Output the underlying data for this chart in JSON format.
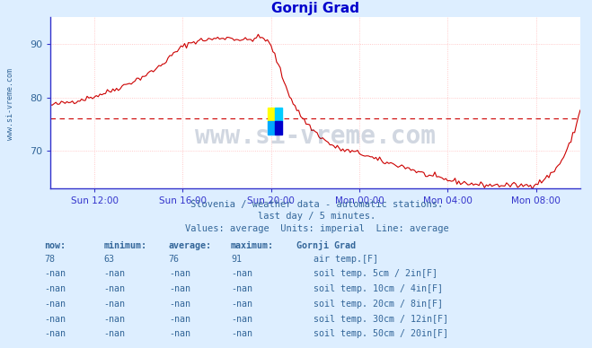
{
  "title": "Gornji Grad",
  "background_color": "#ddeeff",
  "plot_bg_color": "#ffffff",
  "grid_color": "#ffbbbb",
  "grid_style": ":",
  "line_color": "#cc0000",
  "avg_line_color": "#cc0000",
  "avg_line_value": 76,
  "ylim": [
    63,
    95
  ],
  "yticks": [
    70,
    80,
    90
  ],
  "text_color": "#336699",
  "title_color": "#0000cc",
  "spine_color": "#3333cc",
  "subtitle1": "Slovenia / weather data - automatic stations.",
  "subtitle2": "last day / 5 minutes.",
  "subtitle3": "Values: average  Units: imperial  Line: average",
  "legend_title": "Gornji Grad",
  "legend_items": [
    {
      "label": "air temp.[F]",
      "color": "#cc0000"
    },
    {
      "label": "soil temp. 5cm / 2in[F]",
      "color": "#c8a0a0"
    },
    {
      "label": "soil temp. 10cm / 4in[F]",
      "color": "#c87832"
    },
    {
      "label": "soil temp. 20cm / 8in[F]",
      "color": "#c8a000"
    },
    {
      "label": "soil temp. 30cm / 12in[F]",
      "color": "#787840"
    },
    {
      "label": "soil temp. 50cm / 20in[F]",
      "color": "#784800"
    }
  ],
  "table_headers": [
    "now:",
    "minimum:",
    "average:",
    "maximum:"
  ],
  "table_row1": [
    "78",
    "63",
    "76",
    "91"
  ],
  "table_nan_rows": [
    [
      "-nan",
      "-nan",
      "-nan",
      "-nan"
    ],
    [
      "-nan",
      "-nan",
      "-nan",
      "-nan"
    ],
    [
      "-nan",
      "-nan",
      "-nan",
      "-nan"
    ],
    [
      "-nan",
      "-nan",
      "-nan",
      "-nan"
    ],
    [
      "-nan",
      "-nan",
      "-nan",
      "-nan"
    ]
  ],
  "xtick_labels": [
    "Sun 12:00",
    "Sun 16:00",
    "Sun 20:00",
    "Mon 00:00",
    "Mon 04:00",
    "Mon 08:00"
  ],
  "watermark": "www.si-vreme.com",
  "watermark_color": "#1a3a6a",
  "logo_colors": [
    "#ffff00",
    "#00ccff",
    "#00aaff",
    "#0000cc"
  ]
}
